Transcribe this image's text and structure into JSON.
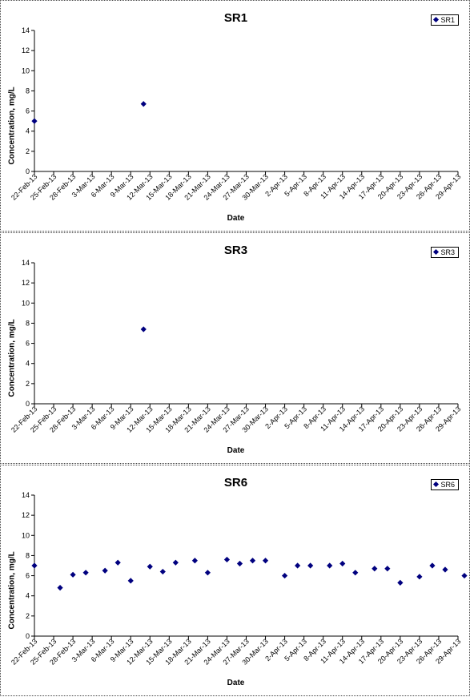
{
  "chart_data": [
    {
      "type": "scatter",
      "title": "SR1",
      "xlabel": "Date",
      "ylabel": "Concentration, mg/L",
      "ylim": [
        0,
        14
      ],
      "yticks": [
        "0",
        "2",
        "4",
        "6",
        "8",
        "10",
        "12",
        "14"
      ],
      "xticks": [
        "22-Feb-13",
        "25-Feb-13",
        "28-Feb-13",
        "3-Mar-13",
        "6-Mar-13",
        "9-Mar-13",
        "12-Mar-13",
        "15-Mar-13",
        "18-Mar-13",
        "21-Mar-13",
        "24-Mar-13",
        "27-Mar-13",
        "30-Mar-13",
        "2-Apr-13",
        "5-Apr-13",
        "8-Apr-13",
        "11-Apr-13",
        "14-Apr-13",
        "17-Apr-13",
        "20-Apr-13",
        "23-Apr-13",
        "26-Apr-13",
        "29-Apr-13"
      ],
      "xlim": [
        "2013-02-22",
        "2013-04-29"
      ],
      "legend": "top-right",
      "grid": false,
      "series": [
        {
          "name": "SR1",
          "color": "#00007f",
          "marker": "diamond",
          "points": [
            {
              "x": "2013-02-22",
              "y": 5.0
            },
            {
              "x": "2013-03-11",
              "y": 6.7
            }
          ]
        }
      ]
    },
    {
      "type": "scatter",
      "title": "SR3",
      "xlabel": "Date",
      "ylabel": "Concentration, mg/L",
      "ylim": [
        0,
        14
      ],
      "yticks": [
        "0",
        "2",
        "4",
        "6",
        "8",
        "10",
        "12",
        "14"
      ],
      "xticks": [
        "22-Feb-13",
        "25-Feb-13",
        "28-Feb-13",
        "3-Mar-13",
        "6-Mar-13",
        "9-Mar-13",
        "12-Mar-13",
        "15-Mar-13",
        "18-Mar-13",
        "21-Mar-13",
        "24-Mar-13",
        "27-Mar-13",
        "30-Mar-13",
        "2-Apr-13",
        "5-Apr-13",
        "8-Apr-13",
        "11-Apr-13",
        "14-Apr-13",
        "17-Apr-13",
        "20-Apr-13",
        "23-Apr-13",
        "26-Apr-13",
        "29-Apr-13"
      ],
      "xlim": [
        "2013-02-22",
        "2013-04-29"
      ],
      "legend": "top-right",
      "grid": false,
      "series": [
        {
          "name": "SR3",
          "color": "#00007f",
          "marker": "diamond",
          "points": [
            {
              "x": "2013-03-11",
              "y": 7.4
            }
          ]
        }
      ]
    },
    {
      "type": "scatter",
      "title": "SR6",
      "xlabel": "Date",
      "ylabel": "Concentration, mg/L",
      "ylim": [
        0,
        14
      ],
      "yticks": [
        "0",
        "2",
        "4",
        "6",
        "8",
        "10",
        "12",
        "14"
      ],
      "xticks": [
        "22-Feb-13",
        "25-Feb-13",
        "28-Feb-13",
        "3-Mar-13",
        "6-Mar-13",
        "9-Mar-13",
        "12-Mar-13",
        "15-Mar-13",
        "18-Mar-13",
        "21-Mar-13",
        "24-Mar-13",
        "27-Mar-13",
        "30-Mar-13",
        "2-Apr-13",
        "5-Apr-13",
        "8-Apr-13",
        "11-Apr-13",
        "14-Apr-13",
        "17-Apr-13",
        "20-Apr-13",
        "23-Apr-13",
        "26-Apr-13",
        "29-Apr-13"
      ],
      "xlim": [
        "2013-02-22",
        "2013-04-29"
      ],
      "legend": "top-right",
      "grid": false,
      "series": [
        {
          "name": "SR6",
          "color": "#00007f",
          "marker": "diamond",
          "points": [
            {
              "x": "2013-02-22",
              "y": 7.0
            },
            {
              "x": "2013-02-26",
              "y": 4.8
            },
            {
              "x": "2013-02-28",
              "y": 6.1
            },
            {
              "x": "2013-03-02",
              "y": 6.3
            },
            {
              "x": "2013-03-05",
              "y": 6.5
            },
            {
              "x": "2013-03-07",
              "y": 7.3
            },
            {
              "x": "2013-03-09",
              "y": 5.5
            },
            {
              "x": "2013-03-12",
              "y": 6.9
            },
            {
              "x": "2013-03-14",
              "y": 6.4
            },
            {
              "x": "2013-03-16",
              "y": 7.3
            },
            {
              "x": "2013-03-19",
              "y": 7.5
            },
            {
              "x": "2013-03-21",
              "y": 6.3
            },
            {
              "x": "2013-03-24",
              "y": 7.6
            },
            {
              "x": "2013-03-26",
              "y": 7.2
            },
            {
              "x": "2013-03-28",
              "y": 7.5
            },
            {
              "x": "2013-03-30",
              "y": 7.5
            },
            {
              "x": "2013-04-02",
              "y": 6.0
            },
            {
              "x": "2013-04-04",
              "y": 7.0
            },
            {
              "x": "2013-04-06",
              "y": 7.0
            },
            {
              "x": "2013-04-09",
              "y": 7.0
            },
            {
              "x": "2013-04-11",
              "y": 7.2
            },
            {
              "x": "2013-04-13",
              "y": 6.3
            },
            {
              "x": "2013-04-16",
              "y": 6.7
            },
            {
              "x": "2013-04-18",
              "y": 6.7
            },
            {
              "x": "2013-04-20",
              "y": 5.3
            },
            {
              "x": "2013-04-23",
              "y": 5.9
            },
            {
              "x": "2013-04-25",
              "y": 7.0
            },
            {
              "x": "2013-04-27",
              "y": 6.6
            },
            {
              "x": "2013-04-30",
              "y": 6.0
            }
          ]
        }
      ]
    }
  ]
}
